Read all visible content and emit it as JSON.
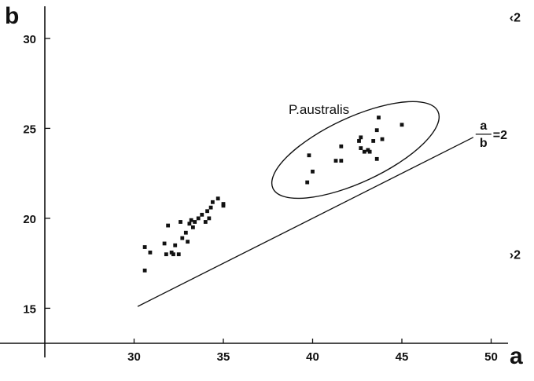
{
  "chart_data": {
    "type": "scatter",
    "xlabel": "a",
    "ylabel": "b",
    "xlim": [
      25,
      52
    ],
    "ylim": [
      13,
      32
    ],
    "x_ticks": [
      "30",
      "35",
      "40",
      "45",
      "50"
    ],
    "y_ticks": [
      "15",
      "20",
      "25",
      "30"
    ],
    "grid": false,
    "legend": "none",
    "series": [
      {
        "points": [
          [
            30.6,
            17.1
          ],
          [
            30.6,
            18.4
          ],
          [
            30.9,
            18.1
          ],
          [
            31.7,
            18.6
          ],
          [
            31.8,
            18.0
          ],
          [
            31.9,
            19.6
          ],
          [
            32.2,
            18.0
          ],
          [
            32.3,
            18.5
          ],
          [
            32.5,
            18.0
          ],
          [
            32.6,
            19.8
          ],
          [
            32.7,
            18.9
          ],
          [
            32.9,
            19.2
          ],
          [
            33.0,
            18.7
          ],
          [
            33.1,
            19.7
          ],
          [
            33.2,
            19.9
          ],
          [
            33.3,
            19.5
          ],
          [
            33.4,
            19.8
          ],
          [
            33.6,
            20.0
          ],
          [
            33.8,
            20.2
          ],
          [
            34.0,
            19.8
          ],
          [
            34.1,
            20.4
          ],
          [
            34.3,
            20.6
          ],
          [
            34.4,
            20.9
          ],
          [
            34.7,
            21.1
          ],
          [
            35.0,
            20.7
          ],
          [
            35.0,
            20.8
          ],
          [
            34.2,
            20.0
          ],
          [
            32.1,
            18.1
          ]
        ]
      },
      {
        "name": "P.australis",
        "points": [
          [
            39.7,
            22.0
          ],
          [
            39.8,
            23.5
          ],
          [
            40.0,
            22.6
          ],
          [
            41.3,
            23.2
          ],
          [
            41.6,
            23.2
          ],
          [
            41.6,
            24.0
          ],
          [
            42.6,
            24.3
          ],
          [
            42.7,
            24.5
          ],
          [
            42.7,
            23.9
          ],
          [
            42.9,
            23.7
          ],
          [
            43.1,
            23.8
          ],
          [
            43.2,
            23.7
          ],
          [
            43.4,
            24.3
          ],
          [
            43.6,
            24.9
          ],
          [
            43.6,
            23.3
          ],
          [
            43.9,
            24.4
          ],
          [
            43.7,
            25.6
          ],
          [
            45.0,
            25.2
          ]
        ]
      }
    ],
    "reference_line": {
      "label_num": "a",
      "label_den": "b",
      "label_eq": "=2",
      "from": [
        30.2,
        15.1
      ],
      "to": [
        49.0,
        24.5
      ]
    },
    "region_labels": [
      {
        "text": "‹2",
        "x": 51.2,
        "y": 31.2
      },
      {
        "text": "›2",
        "x": 51.2,
        "y": 18.0
      }
    ],
    "group_ellipse": {
      "label": "P.australis",
      "cx": 42.4,
      "cy": 23.8,
      "rx": 5.1,
      "ry": 1.8,
      "rotate_deg": -25
    }
  }
}
